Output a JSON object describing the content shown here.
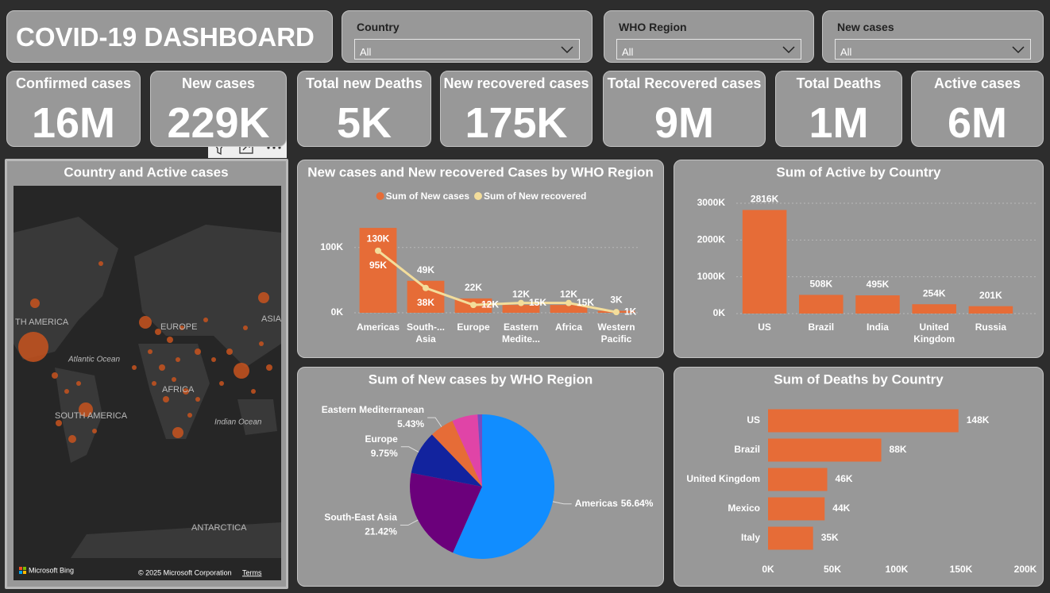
{
  "header": {
    "title": "COVID-19 DASHBOARD"
  },
  "slicers": [
    {
      "label": "Country",
      "value": "All"
    },
    {
      "label": "WHO Region",
      "value": "All"
    },
    {
      "label": "New cases",
      "value": "All"
    }
  ],
  "kpis": [
    {
      "label": "Confirmed cases",
      "value": "16M"
    },
    {
      "label": "New cases",
      "value": "229K"
    },
    {
      "label": "Total new Deaths",
      "value": "5K"
    },
    {
      "label": "New recovered cases",
      "value": "175K"
    },
    {
      "label": "Total Recovered cases",
      "value": "9M"
    },
    {
      "label": "Total Deaths",
      "value": "1M"
    },
    {
      "label": "Active cases",
      "value": "6M"
    }
  ],
  "map": {
    "title": "Country and Active cases",
    "labels": [
      "TH AMERICA",
      "EUROPE",
      "ASIA",
      "Atlantic Ocean",
      "AFRICA",
      "SOUTH AMERICA",
      "Indian Ocean",
      "ANTARCTICA"
    ],
    "logo": "Microsoft Bing",
    "copyright": "© 2025 Microsoft Corporation",
    "terms": "Terms"
  },
  "chart_data": [
    {
      "type": "combo",
      "title": "New cases and New recovered Cases by WHO Region",
      "categories": [
        "Americas",
        "South-... Asia",
        "Europe",
        "Eastern Medite...",
        "Africa",
        "Western Pacific"
      ],
      "series": [
        {
          "name": "Sum of New cases",
          "mark": "bar",
          "color": "#E66C37",
          "values": [
            130000,
            49000,
            22000,
            12000,
            12000,
            3000
          ],
          "value_labels": [
            "130K",
            "49K",
            "22K",
            "12K",
            "12K",
            "3K"
          ]
        },
        {
          "name": "Sum of New recovered",
          "mark": "line",
          "color": "#F3DD9B",
          "values": [
            95000,
            38000,
            12000,
            15000,
            15000,
            1000
          ],
          "value_labels": [
            "95K",
            "38K",
            "12K",
            "15K",
            "15K",
            "1K"
          ]
        }
      ],
      "ylim": [
        0,
        135000
      ],
      "yticks": [
        {
          "value": 0,
          "label": "0K"
        },
        {
          "value": 100000,
          "label": "100K"
        }
      ],
      "grid": true,
      "legend": "top"
    },
    {
      "type": "bar",
      "title": "Sum of Active by Country",
      "categories": [
        "US",
        "Brazil",
        "India",
        "United Kingdom",
        "Russia"
      ],
      "values": [
        2816000,
        508000,
        495000,
        254000,
        201000
      ],
      "value_labels": [
        "2816K",
        "508K",
        "495K",
        "254K",
        "201K"
      ],
      "color": "#E66C37",
      "ylim": [
        0,
        3000000
      ],
      "yticks": [
        {
          "value": 0,
          "label": "0K"
        },
        {
          "value": 1000000,
          "label": "1000K"
        },
        {
          "value": 2000000,
          "label": "2000K"
        },
        {
          "value": 3000000,
          "label": "3000K"
        }
      ],
      "grid": true
    },
    {
      "type": "pie",
      "title": "Sum of New cases by WHO Region",
      "categories": [
        "Americas",
        "South-East Asia",
        "Europe",
        "Eastern Mediterranean",
        null,
        null
      ],
      "values": [
        56.64,
        21.42,
        9.75,
        5.43,
        5.76,
        1.0
      ],
      "value_labels": [
        "56.64%",
        "21.42%",
        "9.75%",
        "5.43%",
        null,
        null
      ],
      "colors": [
        "#118DFF",
        "#6B007B",
        "#12239E",
        "#E66C37",
        "#E044A7",
        "#744EC2"
      ]
    },
    {
      "type": "hbar",
      "title": "Sum of Deaths by Country",
      "categories": [
        "US",
        "Brazil",
        "United Kingdom",
        "Mexico",
        "Italy"
      ],
      "values": [
        148000,
        88000,
        46000,
        44000,
        35000
      ],
      "value_labels": [
        "148K",
        "88K",
        "46K",
        "44K",
        "35K"
      ],
      "color": "#E66C37",
      "xlim": [
        0,
        200000
      ],
      "xticks": [
        {
          "value": 0,
          "label": "0K"
        },
        {
          "value": 50000,
          "label": "50K"
        },
        {
          "value": 100000,
          "label": "100K"
        },
        {
          "value": 150000,
          "label": "150K"
        },
        {
          "value": 200000,
          "label": "200K"
        }
      ]
    }
  ]
}
